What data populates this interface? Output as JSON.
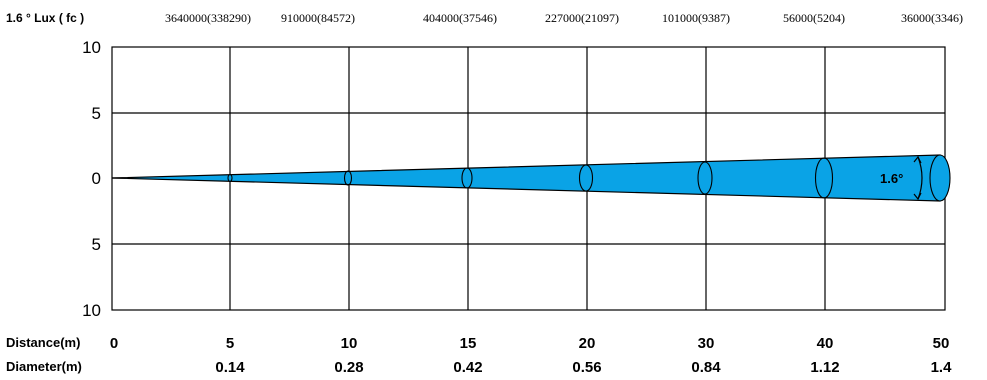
{
  "header": {
    "title": "1.6 ° Lux ( fc )",
    "lux_values": [
      "3640000(338290)",
      "910000(84572)",
      "404000(37546)",
      "227000(21097)",
      "101000(9387)",
      "56000(5204)",
      "36000(3346)"
    ]
  },
  "axis": {
    "y_ticks": [
      "10",
      "5",
      "0",
      "5",
      "10"
    ]
  },
  "rows": {
    "distance_label": "Distance(m)",
    "diameter_label": "Diameter(m)",
    "distances": [
      "0",
      "5",
      "10",
      "15",
      "20",
      "30",
      "40",
      "50"
    ],
    "diameters": [
      "0.14",
      "0.28",
      "0.42",
      "0.56",
      "0.84",
      "1.12",
      "1.4"
    ]
  },
  "beam": {
    "angle_label": "1.6°",
    "color": "#0aa3e6"
  }
}
